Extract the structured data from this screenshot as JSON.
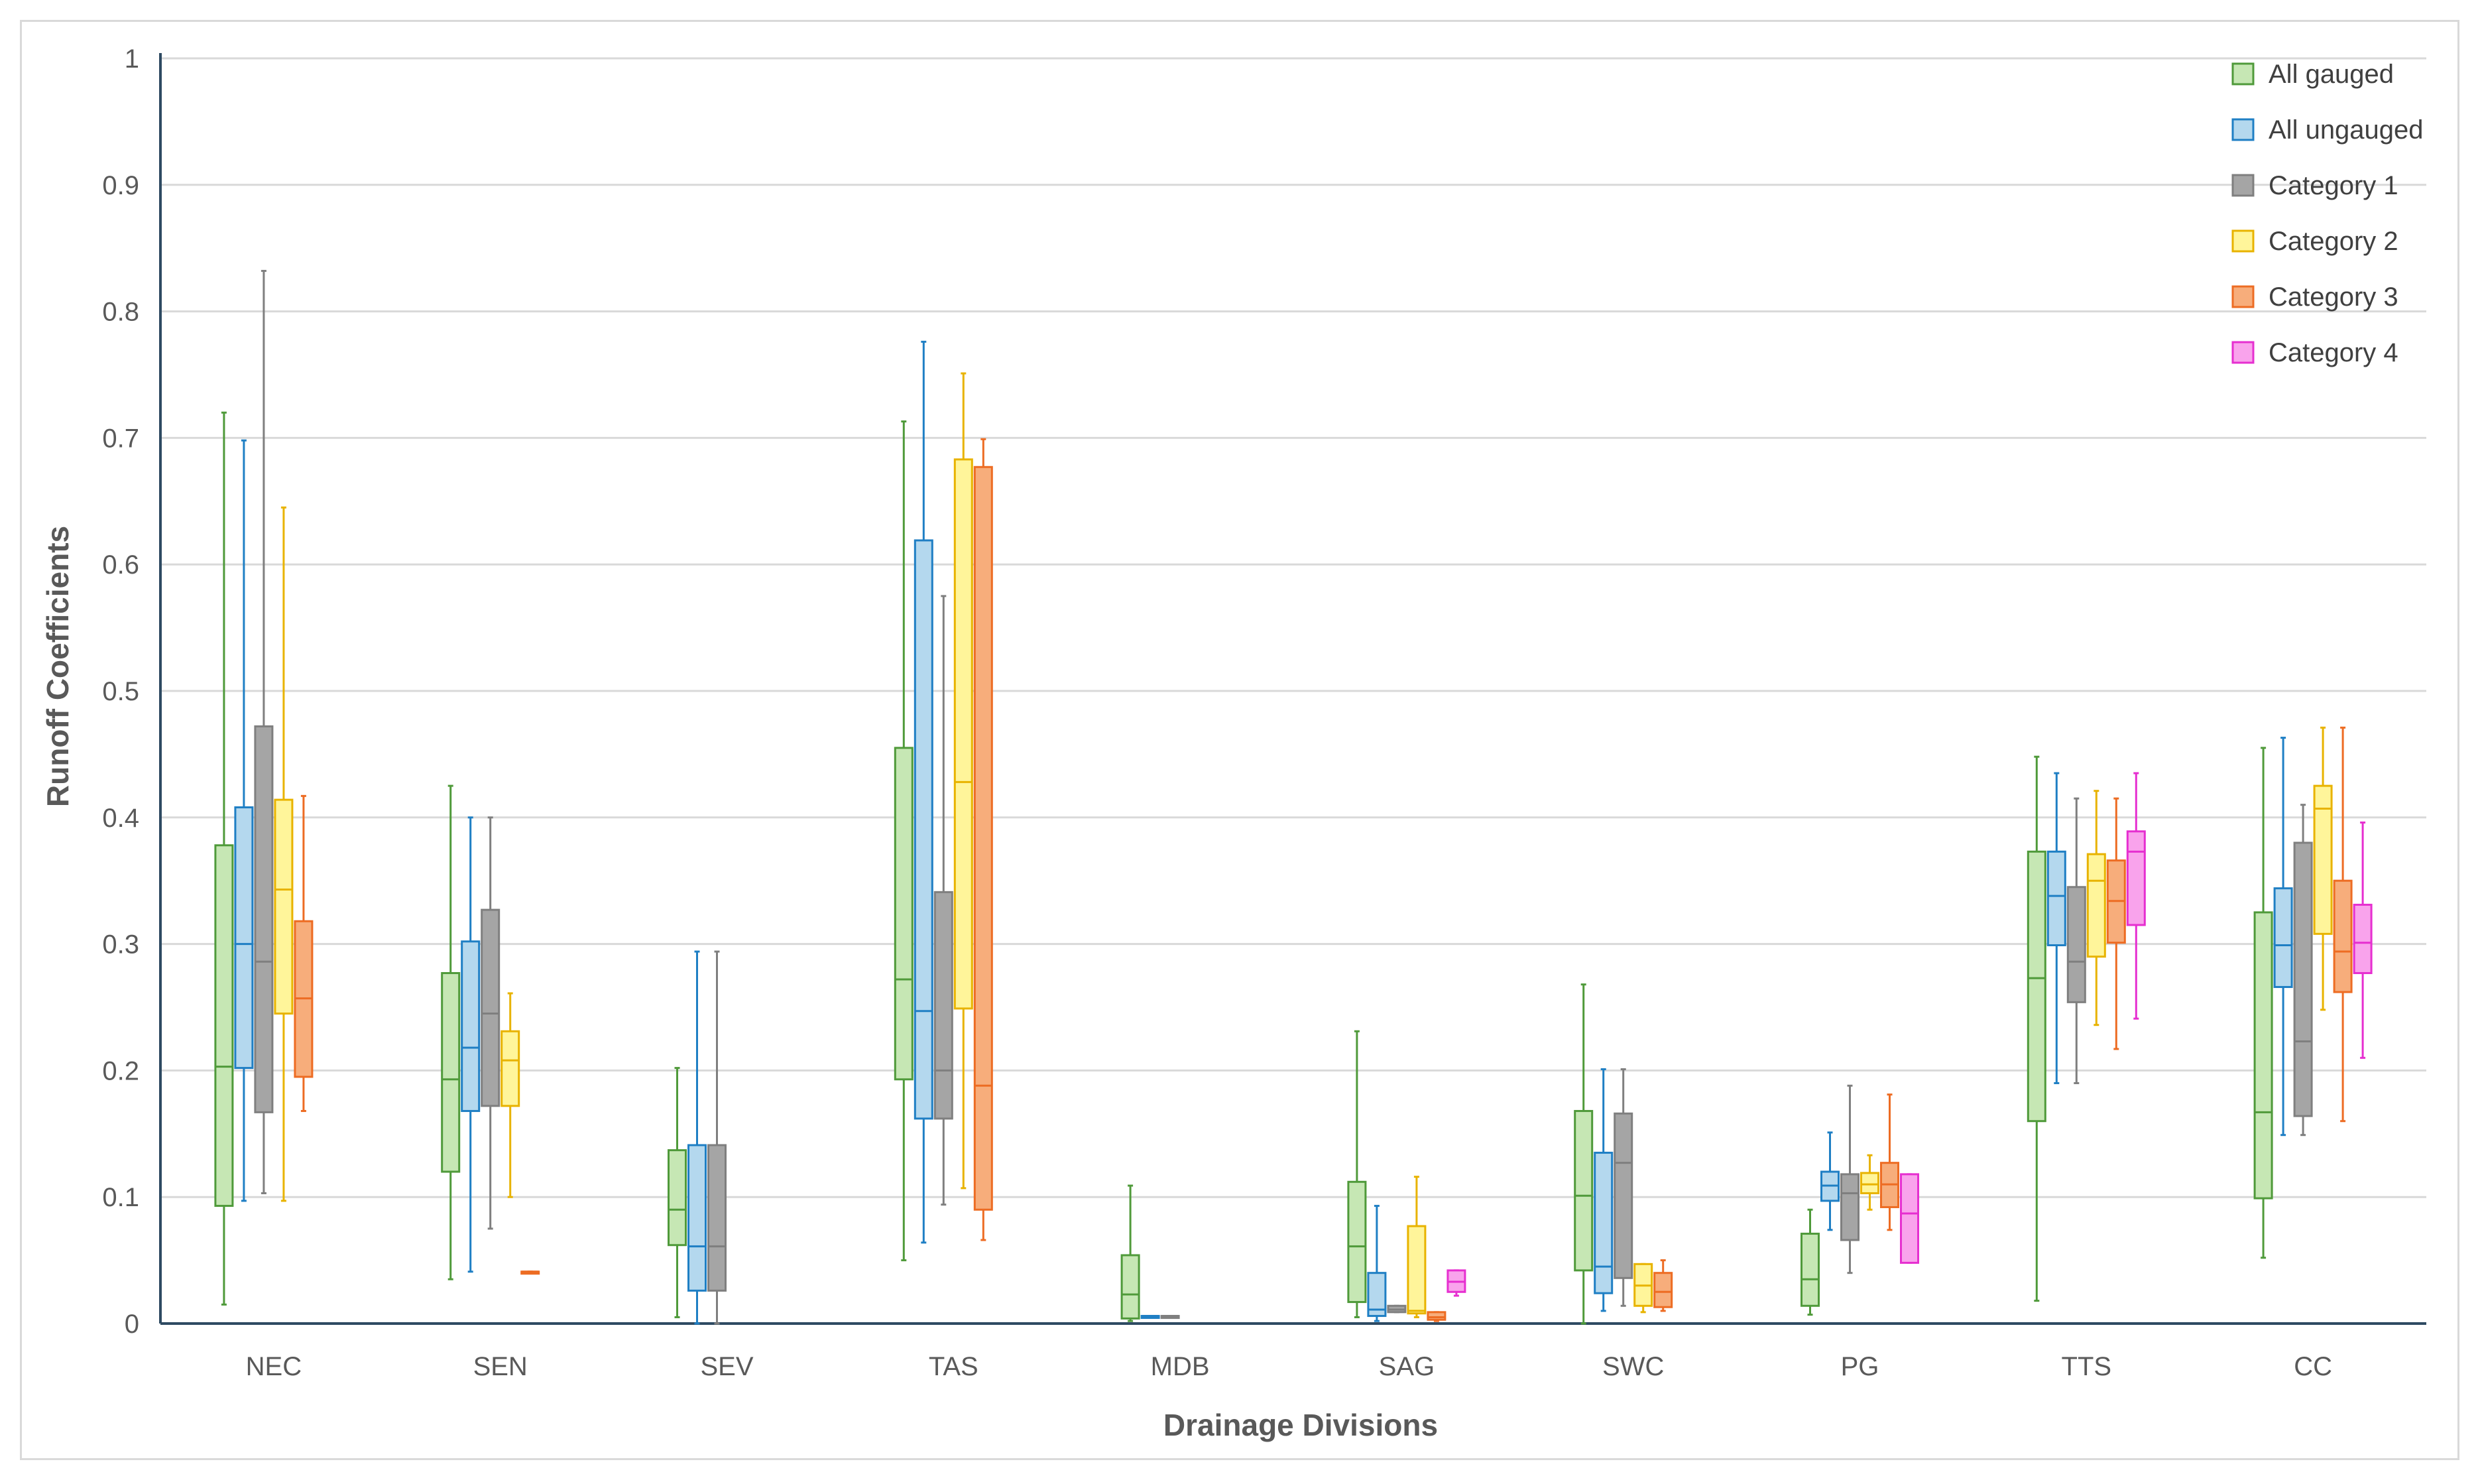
{
  "chart_data": {
    "type": "box",
    "xlabel": "Drainage Divisions",
    "ylabel": "Runoff Coefficients",
    "ylim": [
      0,
      1
    ],
    "yticks": [
      0,
      0.1,
      0.2,
      0.3,
      0.4,
      0.5,
      0.6,
      0.7,
      0.8,
      0.9,
      1
    ],
    "ytick_labels": [
      "0",
      "0.1",
      "0.2",
      "0.3",
      "0.4",
      "0.5",
      "0.6",
      "0.7",
      "0.8",
      "0.9",
      "1"
    ],
    "grid": "horizontal",
    "legend_position": "top-right",
    "categories": [
      "NEC",
      "SEN",
      "SEV",
      "TAS",
      "MDB",
      "SAG",
      "SWC",
      "PG",
      "TTS",
      "CC"
    ],
    "series": [
      {
        "name": "All gauged",
        "fill": "#c6e7b4",
        "stroke": "#4f9a3a",
        "boxes": [
          {
            "min": 0.015,
            "q1": 0.093,
            "median": 0.203,
            "q3": 0.378,
            "max": 0.72
          },
          {
            "min": 0.035,
            "q1": 0.12,
            "median": 0.193,
            "q3": 0.277,
            "max": 0.425
          },
          {
            "min": 0.005,
            "q1": 0.062,
            "median": 0.09,
            "q3": 0.137,
            "max": 0.202
          },
          {
            "min": 0.05,
            "q1": 0.193,
            "median": 0.272,
            "q3": 0.455,
            "max": 0.713
          },
          {
            "min": 0.002,
            "q1": 0.004,
            "median": 0.023,
            "q3": 0.054,
            "max": 0.109
          },
          {
            "min": 0.005,
            "q1": 0.017,
            "median": 0.061,
            "q3": 0.112,
            "max": 0.231
          },
          {
            "min": 0.0,
            "q1": 0.042,
            "median": 0.101,
            "q3": 0.168,
            "max": 0.268
          },
          {
            "min": 0.007,
            "q1": 0.014,
            "median": 0.035,
            "q3": 0.071,
            "max": 0.09
          },
          {
            "min": 0.018,
            "q1": 0.16,
            "median": 0.273,
            "q3": 0.373,
            "max": 0.448
          },
          {
            "min": 0.052,
            "q1": 0.099,
            "median": 0.167,
            "q3": 0.325,
            "max": 0.455
          }
        ]
      },
      {
        "name": "All ungauged",
        "fill": "#b4d8ee",
        "stroke": "#1f7fc4",
        "boxes": [
          {
            "min": 0.097,
            "q1": 0.202,
            "median": 0.3,
            "q3": 0.408,
            "max": 0.698
          },
          {
            "min": 0.041,
            "q1": 0.168,
            "median": 0.218,
            "q3": 0.302,
            "max": 0.4
          },
          {
            "min": 0.0,
            "q1": 0.026,
            "median": 0.061,
            "q3": 0.141,
            "max": 0.294
          },
          {
            "min": 0.064,
            "q1": 0.162,
            "median": 0.247,
            "q3": 0.619,
            "max": 0.776
          },
          {
            "min": 0.006,
            "q1": 0.006,
            "median": 0.006,
            "q3": 0.006,
            "max": 0.006
          },
          {
            "min": 0.002,
            "q1": 0.006,
            "median": 0.011,
            "q3": 0.04,
            "max": 0.093
          },
          {
            "min": 0.01,
            "q1": 0.024,
            "median": 0.045,
            "q3": 0.135,
            "max": 0.201
          },
          {
            "min": 0.074,
            "q1": 0.097,
            "median": 0.109,
            "q3": 0.12,
            "max": 0.151
          },
          {
            "min": 0.19,
            "q1": 0.299,
            "median": 0.338,
            "q3": 0.373,
            "max": 0.435
          },
          {
            "min": 0.149,
            "q1": 0.266,
            "median": 0.299,
            "q3": 0.344,
            "max": 0.463
          }
        ]
      },
      {
        "name": "Category 1",
        "fill": "#a5a5a5",
        "stroke": "#7f7f7f",
        "boxes": [
          {
            "min": 0.103,
            "q1": 0.167,
            "median": 0.286,
            "q3": 0.472,
            "max": 0.832
          },
          {
            "min": 0.075,
            "q1": 0.172,
            "median": 0.245,
            "q3": 0.327,
            "max": 0.4
          },
          {
            "min": 0.0,
            "q1": 0.026,
            "median": 0.061,
            "q3": 0.141,
            "max": 0.294
          },
          {
            "min": 0.094,
            "q1": 0.162,
            "median": 0.2,
            "q3": 0.341,
            "max": 0.575
          },
          {
            "min": 0.006,
            "q1": 0.006,
            "median": 0.006,
            "q3": 0.006,
            "max": 0.006
          },
          {
            "min": 0.009,
            "q1": 0.009,
            "median": 0.011,
            "q3": 0.014,
            "max": 0.014
          },
          {
            "min": 0.014,
            "q1": 0.036,
            "median": 0.127,
            "q3": 0.166,
            "max": 0.201
          },
          {
            "min": 0.04,
            "q1": 0.066,
            "median": 0.103,
            "q3": 0.118,
            "max": 0.188
          },
          {
            "min": 0.19,
            "q1": 0.254,
            "median": 0.286,
            "q3": 0.345,
            "max": 0.415
          },
          {
            "min": 0.149,
            "q1": 0.164,
            "median": 0.223,
            "q3": 0.38,
            "max": 0.41
          }
        ]
      },
      {
        "name": "Category 2",
        "fill": "#fff59a",
        "stroke": "#e8b300",
        "boxes": [
          {
            "min": 0.097,
            "q1": 0.245,
            "median": 0.343,
            "q3": 0.414,
            "max": 0.645
          },
          {
            "min": 0.1,
            "q1": 0.172,
            "median": 0.208,
            "q3": 0.231,
            "max": 0.261
          },
          null,
          {
            "min": 0.107,
            "q1": 0.249,
            "median": 0.428,
            "q3": 0.683,
            "max": 0.751
          },
          null,
          {
            "min": 0.005,
            "q1": 0.008,
            "median": 0.01,
            "q3": 0.077,
            "max": 0.116
          },
          {
            "min": 0.009,
            "q1": 0.014,
            "median": 0.03,
            "q3": 0.047,
            "max": 0.047
          },
          {
            "min": 0.09,
            "q1": 0.103,
            "median": 0.11,
            "q3": 0.119,
            "max": 0.133
          },
          {
            "min": 0.236,
            "q1": 0.29,
            "median": 0.35,
            "q3": 0.371,
            "max": 0.421
          },
          {
            "min": 0.248,
            "q1": 0.308,
            "median": 0.407,
            "q3": 0.425,
            "max": 0.471
          }
        ]
      },
      {
        "name": "Category 3",
        "fill": "#f7ad7b",
        "stroke": "#ed6c23",
        "boxes": [
          {
            "min": 0.168,
            "q1": 0.195,
            "median": 0.257,
            "q3": 0.318,
            "max": 0.417
          },
          {
            "min": 0.041,
            "q1": 0.041,
            "median": 0.041,
            "q3": 0.041,
            "max": 0.041
          },
          null,
          {
            "min": 0.066,
            "q1": 0.09,
            "median": 0.188,
            "q3": 0.677,
            "max": 0.699
          },
          null,
          {
            "min": 0.002,
            "q1": 0.003,
            "median": 0.005,
            "q3": 0.009,
            "max": 0.009
          },
          {
            "min": 0.01,
            "q1": 0.013,
            "median": 0.025,
            "q3": 0.04,
            "max": 0.05
          },
          {
            "min": 0.074,
            "q1": 0.092,
            "median": 0.11,
            "q3": 0.127,
            "max": 0.181
          },
          {
            "min": 0.217,
            "q1": 0.301,
            "median": 0.334,
            "q3": 0.366,
            "max": 0.415
          },
          {
            "min": 0.16,
            "q1": 0.262,
            "median": 0.294,
            "q3": 0.35,
            "max": 0.471
          }
        ]
      },
      {
        "name": "Category 4",
        "fill": "#f9a3ec",
        "stroke": "#e62fd0",
        "boxes": [
          null,
          null,
          null,
          null,
          null,
          {
            "min": 0.022,
            "q1": 0.025,
            "median": 0.033,
            "q3": 0.042,
            "max": 0.042
          },
          null,
          {
            "min": 0.048,
            "q1": 0.048,
            "median": 0.087,
            "q3": 0.118,
            "max": 0.118
          },
          {
            "min": 0.241,
            "q1": 0.315,
            "median": 0.373,
            "q3": 0.389,
            "max": 0.435
          },
          {
            "min": 0.21,
            "q1": 0.277,
            "median": 0.301,
            "q3": 0.331,
            "max": 0.396
          }
        ]
      }
    ]
  }
}
